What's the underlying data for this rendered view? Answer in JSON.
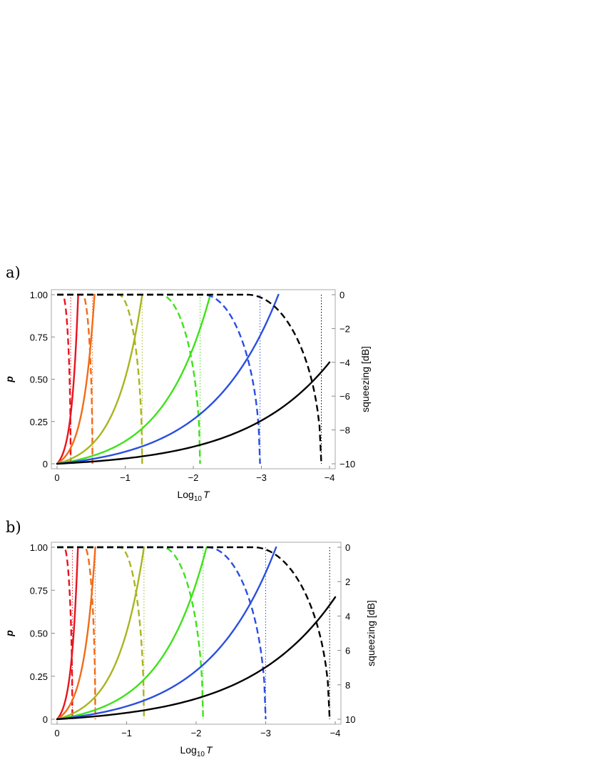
{
  "chart_data": [
    {
      "type": "line",
      "panel_label": "a)",
      "xlabel_main": "Log",
      "xlabel_sub": "10",
      "xlabel_var": "T",
      "ylabel": "p",
      "ylabel_right": "squeezing [dB]",
      "xlim": [
        0,
        -4
      ],
      "ylim": [
        0,
        1
      ],
      "ylim_right": [
        -10,
        0
      ],
      "x_ticks": [
        "0",
        "−1",
        "−2",
        "−3",
        "−4"
      ],
      "y_ticks": [
        "0",
        "0.25",
        "0.50",
        "0.75",
        "1.00"
      ],
      "y_ticks_right": [
        "−10",
        "−8",
        "−6",
        "−4",
        "−2",
        "0"
      ],
      "series": [
        {
          "color": "#e8141e",
          "k": 0.2,
          "solid_end": 0.31
        },
        {
          "color": "#f26b18",
          "k": 0.52,
          "solid_end": 0.55
        },
        {
          "color": "#a8b520",
          "k": 1.25,
          "solid_end": 1.25
        },
        {
          "color": "#3ee21a",
          "k": 2.1,
          "solid_end": 2.25
        },
        {
          "color": "#2a4fe0",
          "k": 2.98,
          "solid_end": 3.25
        },
        {
          "color": "#000000",
          "k": 3.88,
          "solid_end": 4.0,
          "solid_end_p": 0.6
        }
      ]
    },
    {
      "type": "line",
      "panel_label": "b)",
      "xlabel_main": "Log",
      "xlabel_sub": "10",
      "xlabel_var": "T",
      "ylabel": "p",
      "ylabel_right": "squeezing [dB]",
      "xlim": [
        0,
        -4
      ],
      "ylim": [
        0,
        1
      ],
      "ylim_right": [
        10,
        0
      ],
      "x_ticks": [
        "0",
        "−1",
        "−2",
        "−3",
        "−4"
      ],
      "y_ticks": [
        "0",
        "0.25",
        "0.50",
        "0.75",
        "1.00"
      ],
      "y_ticks_right": [
        "10",
        "8",
        "6",
        "4",
        "2",
        "0"
      ],
      "series": [
        {
          "color": "#e8141e",
          "k": 0.22,
          "solid_end": 0.3
        },
        {
          "color": "#f26b18",
          "k": 0.55,
          "solid_end": 0.55
        },
        {
          "color": "#a8b520",
          "k": 1.25,
          "solid_end": 1.25
        },
        {
          "color": "#3ee21a",
          "k": 2.1,
          "solid_end": 2.15
        },
        {
          "color": "#2a4fe0",
          "k": 3.0,
          "solid_end": 3.15
        },
        {
          "color": "#000000",
          "k": 3.92,
          "solid_end": 4.0,
          "solid_end_p": 0.71
        }
      ]
    }
  ]
}
